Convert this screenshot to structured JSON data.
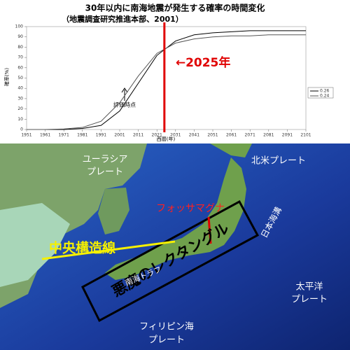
{
  "chart_data": {
    "type": "line",
    "title": "30年以内に南海地震が発生する確率の時間変化",
    "subtitle": "（地震調査研究推進本部、2001）",
    "x_label": "西暦(年)",
    "y_label": "確率(%)",
    "x": [
      1951,
      1961,
      1971,
      1981,
      1991,
      2001,
      2011,
      2021,
      2031,
      2041,
      2051,
      2061,
      2071,
      2081,
      2091,
      2101
    ],
    "series": [
      {
        "name": "0.26",
        "color": "#000000",
        "values": [
          0,
          0,
          0,
          1,
          4,
          18,
          45,
          72,
          86,
          92,
          94,
          95,
          96,
          96,
          96,
          96
        ]
      },
      {
        "name": "0.24",
        "color": "#555555",
        "values": [
          0,
          0,
          0.5,
          2,
          8,
          26,
          52,
          74,
          84,
          88,
          90,
          91,
          91,
          92,
          92,
          92
        ]
      }
    ],
    "xlim": [
      1951,
      2101
    ],
    "xticks": [
      1951,
      1961,
      1971,
      1981,
      1991,
      2001,
      2011,
      2021,
      2031,
      2041,
      2051,
      2061,
      2071,
      2081,
      2091,
      2101
    ],
    "ylim": [
      0,
      100
    ],
    "yticks": [
      0,
      10,
      20,
      30,
      40,
      50,
      60,
      70,
      80,
      90,
      100
    ],
    "annotations": [
      "評価時点"
    ],
    "vline": {
      "x": 2025,
      "label": "←2025年",
      "color": "#e00000"
    },
    "legend": "right"
  },
  "map": {
    "eurasia": [
      "ユーラシア",
      "プレート"
    ],
    "north_america": "北米プレート",
    "fossa_magna": "フォッサマグナ",
    "median_line": "中央構造線",
    "trench": "日本海溝",
    "rectangle": "悪魔のレクタングル",
    "trough": "南海トラフ",
    "pacific": [
      "太平洋",
      "プレート"
    ],
    "philippine": [
      "フィリピン海",
      "プレート"
    ]
  }
}
